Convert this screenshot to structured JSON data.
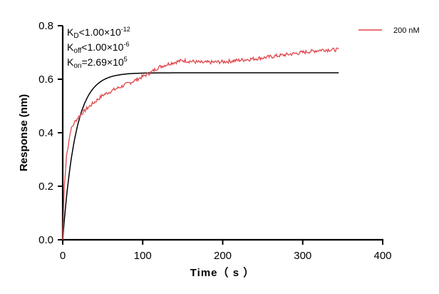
{
  "chart_data": {
    "type": "line",
    "xlabel": "Time（ s ）",
    "ylabel": "Response (nm)",
    "xlim": [
      0,
      400
    ],
    "ylim": [
      0,
      0.8
    ],
    "xticks": [
      "0",
      "100",
      "200",
      "300",
      "400"
    ],
    "yticks": [
      "0.0",
      "0.2",
      "0.4",
      "0.6",
      "0.8"
    ],
    "grid": false,
    "legend_position": "top-right",
    "annotations": {
      "kd": {
        "base": "K",
        "sub": "D",
        "rel": "<1.00×10",
        "exp": "-12"
      },
      "koff": {
        "base": "K",
        "sub": "off",
        "rel": "<1.00×10",
        "exp": "-6"
      },
      "kon": {
        "base": "K",
        "sub": "on",
        "rel": "=2.69×10",
        "exp": "5"
      }
    },
    "series": [
      {
        "name": "200 nM",
        "color": "#e0464b",
        "kind": "measured",
        "x": [
          0,
          2,
          5,
          10,
          15,
          20,
          30,
          40,
          50,
          60,
          75,
          90,
          100,
          110,
          120,
          135,
          150,
          175,
          200,
          225,
          250,
          275,
          300,
          325,
          345
        ],
        "y": [
          0,
          0.2,
          0.32,
          0.41,
          0.44,
          0.46,
          0.49,
          0.515,
          0.54,
          0.555,
          0.575,
          0.595,
          0.61,
          0.625,
          0.645,
          0.66,
          0.67,
          0.662,
          0.665,
          0.672,
          0.68,
          0.69,
          0.7,
          0.71,
          0.71
        ]
      },
      {
        "kind": "fit",
        "color": "#000000",
        "model": "1:1 association",
        "plateau": 0.624,
        "x_end": 345
      }
    ]
  }
}
